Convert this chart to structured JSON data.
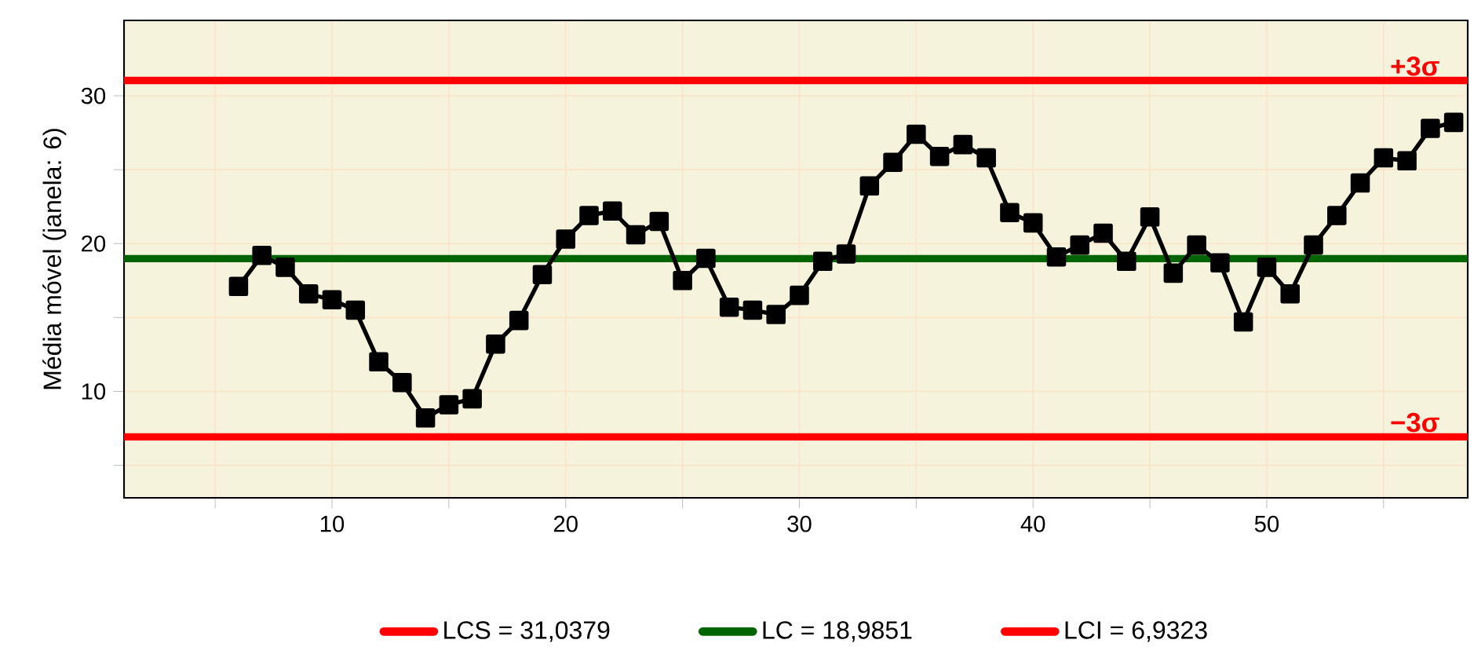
{
  "chart_data": {
    "type": "line",
    "ylabel": "Média móvel (janela: 6)",
    "x": [
      6,
      7,
      8,
      9,
      10,
      11,
      12,
      13,
      14,
      15,
      16,
      17,
      18,
      19,
      20,
      21,
      22,
      23,
      24,
      25,
      26,
      27,
      28,
      29,
      30,
      31,
      32,
      33,
      34,
      35,
      36,
      37,
      38,
      39,
      40,
      41,
      42,
      43,
      44,
      45,
      46,
      47,
      48,
      49,
      50,
      51,
      52,
      53,
      54,
      55,
      56,
      57,
      58
    ],
    "series": [
      {
        "color": "#000000",
        "values": [
          17.1,
          19.2,
          18.4,
          16.6,
          16.2,
          15.5,
          12.0,
          10.6,
          8.2,
          9.1,
          9.5,
          13.2,
          14.8,
          17.9,
          20.3,
          21.9,
          22.2,
          20.6,
          21.5,
          17.5,
          19.0,
          15.7,
          15.5,
          15.2,
          16.5,
          18.8,
          19.3,
          23.9,
          25.5,
          27.4,
          25.9,
          26.7,
          25.8,
          22.1,
          21.4,
          19.1,
          19.9,
          20.7,
          18.8,
          21.8,
          18.0,
          19.9,
          18.7,
          14.7,
          18.4,
          16.6,
          19.9,
          21.9,
          24.1,
          25.8,
          25.6,
          27.8,
          28.2
        ]
      }
    ],
    "marker": "square",
    "line_style": "solid",
    "grid": true,
    "legend": "bottom",
    "xlim": [
      1.1,
      58.6
    ],
    "ylim": [
      2.8,
      35.1
    ],
    "xticks": [
      {
        "value": 5,
        "label": null
      },
      10,
      {
        "value": 15,
        "label": null
      },
      20,
      {
        "value": 25,
        "label": null
      },
      30,
      {
        "value": 35,
        "label": null
      },
      40,
      {
        "value": 45,
        "label": null
      },
      50,
      {
        "value": 55,
        "label": null
      }
    ],
    "yticks": [
      {
        "value": 5,
        "label": null
      },
      10,
      {
        "value": 15,
        "label": null
      },
      20,
      {
        "value": 25,
        "label": null
      },
      30
    ],
    "ref_lines": [
      {
        "axis": "y",
        "value": 31.0379,
        "label": "LCS = 31,0379",
        "color": "#ff0000",
        "line_style": "solid"
      },
      {
        "axis": "y",
        "value": 18.9851,
        "label": "LC = 18,9851",
        "color": "#006400",
        "line_style": "solid"
      },
      {
        "axis": "y",
        "value": 6.9323,
        "label": "LCI = 6,9323",
        "color": "#ff0000",
        "line_style": "solid"
      }
    ],
    "annotations": [
      {
        "text": "+3σ",
        "x": 57.6,
        "y": 31.0379
      },
      {
        "text": "−3σ",
        "x": 57.6,
        "y": 6.9323
      }
    ]
  }
}
